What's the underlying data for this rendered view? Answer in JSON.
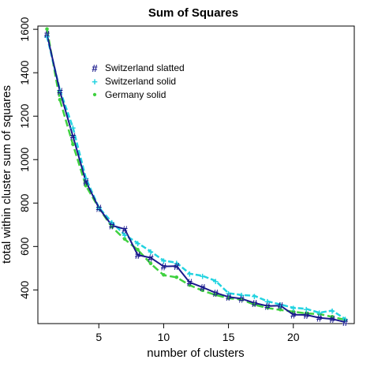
{
  "chart_data": {
    "type": "line",
    "title": "Sum of Squares",
    "xlabel": "number of clusters",
    "ylabel": "total within cluster sum of squares",
    "xlim": [
      0.3,
      24.7
    ],
    "ylim": [
      245,
      1615
    ],
    "x_ticks": [
      5,
      10,
      15,
      20
    ],
    "y_ticks": [
      400,
      600,
      800,
      1000,
      1200,
      1400,
      1600
    ],
    "grid": false,
    "legend_position": "top-left",
    "x": [
      1,
      2,
      3,
      4,
      5,
      6,
      7,
      8,
      9,
      10,
      11,
      12,
      13,
      14,
      15,
      16,
      17,
      18,
      19,
      20,
      21,
      22,
      23,
      24
    ],
    "series": [
      {
        "name": "Switzerland slatted",
        "color": "#1a1a8c",
        "marker": "#",
        "values": [
          1578,
          1315,
          1108,
          900,
          778,
          697,
          680,
          561,
          548,
          508,
          510,
          435,
          412,
          387,
          368,
          360,
          340,
          326,
          328,
          286,
          285,
          272,
          266,
          252
        ]
      },
      {
        "name": "Switzerland solid",
        "color": "#22d3e0",
        "marker": "+",
        "values": [
          1568,
          1320,
          1148,
          915,
          780,
          712,
          653,
          616,
          577,
          535,
          525,
          475,
          465,
          442,
          385,
          377,
          373,
          348,
          333,
          318,
          313,
          295,
          305,
          266
        ]
      },
      {
        "name": "Germany solid",
        "color": "#3fd13f",
        "marker": "•",
        "values": [
          1600,
          1275,
          1070,
          880,
          778,
          690,
          633,
          585,
          521,
          468,
          458,
          422,
          397,
          377,
          362,
          356,
          332,
          317,
          308,
          300,
          292,
          289,
          276,
          262
        ]
      }
    ]
  }
}
